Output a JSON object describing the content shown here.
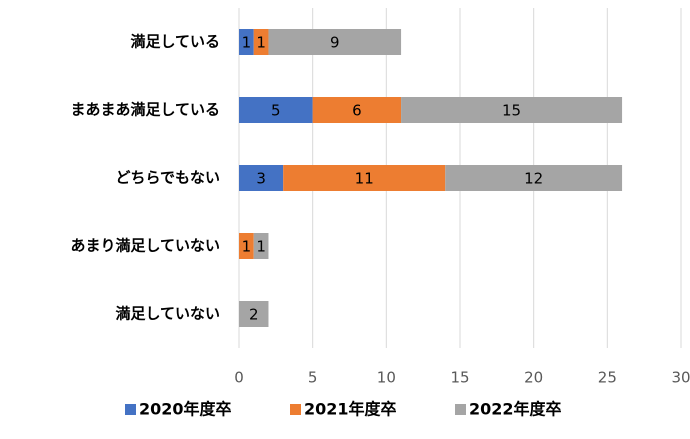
{
  "chart_data": {
    "type": "stacked-barh",
    "categories": [
      "満足している",
      "まあまあ満足している",
      "どちらでもない",
      "あまり満足していない",
      "満足していない"
    ],
    "series": [
      {
        "name": "2020年度卒",
        "color": "#4472c4",
        "values": [
          1,
          5,
          3,
          0,
          0
        ]
      },
      {
        "name": "2021年度卒",
        "color": "#ed7d31",
        "values": [
          1,
          6,
          11,
          1,
          0
        ]
      },
      {
        "name": "2022年度卒",
        "color": "#a5a5a5",
        "values": [
          9,
          15,
          12,
          1,
          2
        ]
      }
    ],
    "xlim": [
      0,
      30
    ],
    "xticks": [
      0,
      5,
      10,
      15,
      20,
      25,
      30
    ],
    "grid": true,
    "legend": "bottom"
  }
}
